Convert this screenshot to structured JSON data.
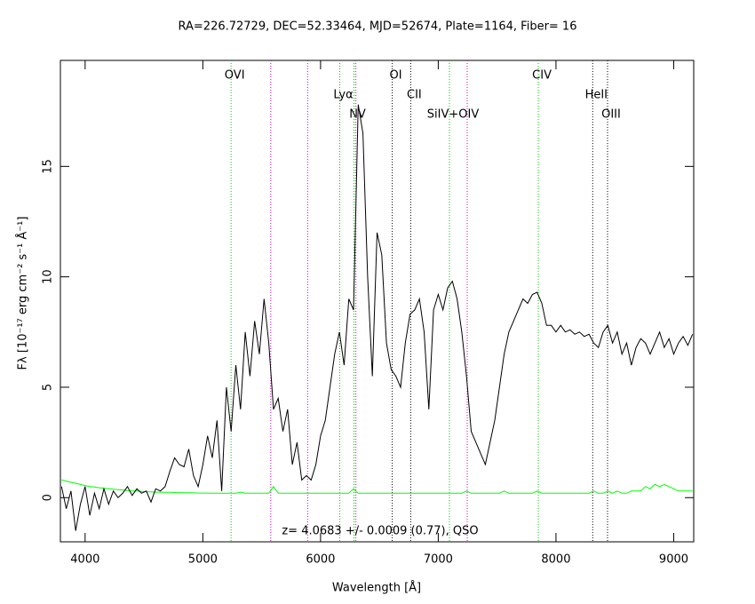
{
  "chart_data": {
    "type": "line",
    "title": "RA=226.72729, DEC=52.33464, MJD=52674, Plate=1164, Fiber= 16",
    "x_label": "Wavelength [Å]",
    "y_label": "Fλ [10⁻¹⁷ erg cm⁻² s⁻¹ Å⁻¹]",
    "annotation": "z= 4.0683 +/- 0.0009 (0.77), QSO",
    "xlim": [
      3790,
      9170
    ],
    "xticks": [
      4000,
      5000,
      6000,
      7000,
      8000,
      9000
    ],
    "ylim": [
      -2,
      19.8
    ],
    "yticks": [
      0,
      5,
      10,
      15
    ],
    "x": [
      3800,
      3840,
      3880,
      3920,
      3960,
      4000,
      4040,
      4080,
      4120,
      4160,
      4200,
      4240,
      4280,
      4320,
      4360,
      4400,
      4440,
      4480,
      4520,
      4560,
      4600,
      4640,
      4680,
      4720,
      4760,
      4800,
      4840,
      4880,
      4920,
      4960,
      5000,
      5040,
      5080,
      5120,
      5160,
      5200,
      5240,
      5280,
      5320,
      5360,
      5400,
      5440,
      5480,
      5520,
      5560,
      5600,
      5640,
      5680,
      5720,
      5760,
      5800,
      5840,
      5880,
      5920,
      5960,
      6000,
      6040,
      6080,
      6120,
      6160,
      6200,
      6240,
      6280,
      6320,
      6360,
      6400,
      6440,
      6480,
      6520,
      6560,
      6600,
      6640,
      6680,
      6720,
      6760,
      6800,
      6840,
      6880,
      6920,
      6960,
      7000,
      7040,
      7080,
      7120,
      7160,
      7200,
      7240,
      7280,
      7320,
      7360,
      7400,
      7440,
      7480,
      7520,
      7560,
      7600,
      7640,
      7680,
      7720,
      7760,
      7800,
      7840,
      7880,
      7920,
      7960,
      8000,
      8040,
      8080,
      8120,
      8160,
      8200,
      8240,
      8280,
      8320,
      8360,
      8400,
      8440,
      8480,
      8520,
      8560,
      8600,
      8640,
      8680,
      8720,
      8760,
      8800,
      8840,
      8880,
      8920,
      8960,
      9000,
      9040,
      9080,
      9120,
      9160
    ],
    "series": [
      {
        "color": "#000000",
        "values": [
          0.5,
          -0.5,
          0.3,
          -1.5,
          -0.3,
          0.5,
          -0.8,
          0.2,
          -0.5,
          0.4,
          -0.3,
          0.3,
          0.0,
          0.2,
          0.5,
          0.1,
          0.4,
          0.2,
          0.3,
          -0.2,
          0.4,
          0.3,
          0.5,
          1.2,
          1.8,
          1.5,
          1.4,
          2.2,
          1.0,
          0.5,
          1.5,
          2.8,
          1.8,
          3.5,
          0.3,
          5.0,
          3.0,
          6.0,
          4.0,
          7.5,
          5.5,
          8.0,
          6.5,
          9.0,
          7.0,
          4.0,
          4.5,
          3.0,
          4.0,
          1.5,
          2.5,
          0.8,
          1.0,
          0.8,
          1.5,
          2.8,
          3.5,
          5.0,
          6.5,
          7.5,
          6.0,
          9.0,
          8.5,
          17.8,
          16.5,
          10.0,
          5.5,
          12.0,
          11.0,
          7.0,
          5.8,
          5.5,
          5.0,
          7.0,
          8.3,
          8.5,
          9.0,
          7.5,
          4.0,
          8.5,
          9.2,
          8.5,
          9.5,
          9.8,
          9.0,
          7.5,
          5.5,
          3.0,
          2.5,
          2.0,
          1.5,
          2.5,
          3.5,
          5.0,
          6.5,
          7.5,
          8.0,
          8.5,
          9.0,
          8.8,
          9.2,
          9.3,
          8.8,
          7.8,
          7.8,
          7.5,
          7.8,
          7.5,
          7.6,
          7.4,
          7.5,
          7.3,
          7.4,
          7.0,
          6.8,
          7.5,
          7.8,
          7.0,
          7.5,
          6.5,
          7.0,
          6.0,
          6.8,
          7.2,
          7.0,
          6.5,
          7.0,
          7.5,
          6.8,
          7.2,
          6.5,
          7.0,
          7.3,
          6.9,
          7.4
        ]
      },
      {
        "color": "#00ff00",
        "values": [
          0.8,
          0.75,
          0.7,
          0.65,
          0.6,
          0.55,
          0.5,
          0.48,
          0.45,
          0.42,
          0.4,
          0.38,
          0.36,
          0.34,
          0.32,
          0.3,
          0.3,
          0.28,
          0.27,
          0.26,
          0.25,
          0.25,
          0.24,
          0.24,
          0.23,
          0.23,
          0.22,
          0.22,
          0.22,
          0.21,
          0.21,
          0.21,
          0.2,
          0.2,
          0.2,
          0.2,
          0.2,
          0.2,
          0.25,
          0.2,
          0.2,
          0.2,
          0.2,
          0.2,
          0.2,
          0.5,
          0.2,
          0.2,
          0.2,
          0.2,
          0.2,
          0.2,
          0.2,
          0.2,
          0.2,
          0.2,
          0.2,
          0.2,
          0.2,
          0.2,
          0.2,
          0.2,
          0.4,
          0.2,
          0.2,
          0.2,
          0.2,
          0.2,
          0.2,
          0.2,
          0.2,
          0.2,
          0.2,
          0.2,
          0.2,
          0.2,
          0.2,
          0.2,
          0.2,
          0.2,
          0.2,
          0.2,
          0.2,
          0.2,
          0.2,
          0.2,
          0.3,
          0.2,
          0.2,
          0.2,
          0.2,
          0.2,
          0.2,
          0.2,
          0.3,
          0.2,
          0.2,
          0.2,
          0.2,
          0.2,
          0.2,
          0.3,
          0.2,
          0.2,
          0.2,
          0.2,
          0.2,
          0.2,
          0.2,
          0.2,
          0.2,
          0.2,
          0.2,
          0.3,
          0.2,
          0.2,
          0.3,
          0.2,
          0.3,
          0.2,
          0.2,
          0.3,
          0.3,
          0.3,
          0.5,
          0.4,
          0.6,
          0.5,
          0.6,
          0.5,
          0.4,
          0.3,
          0.3,
          0.3,
          0.3
        ]
      }
    ],
    "lines": [
      {
        "wavelength": 5240,
        "label": "OVI",
        "color": "#00cc00"
      },
      {
        "wavelength": 5577,
        "color": "#cc00cc"
      },
      {
        "wavelength": 5890,
        "color": "#cc00cc"
      },
      {
        "wavelength": 6163,
        "label": "Lyα",
        "color": "#00cc00"
      },
      {
        "wavelength": 6284,
        "label": "NV",
        "color": "#00cc00"
      },
      {
        "wavelength": 6300,
        "color": "#cc00cc"
      },
      {
        "wavelength": 6609,
        "label": "OI",
        "color": "#000000"
      },
      {
        "wavelength": 6766,
        "label": "CII",
        "color": "#000000"
      },
      {
        "wavelength": 7095,
        "label": "SiIV+OIV",
        "color": "#00cc00"
      },
      {
        "wavelength": 7246,
        "color": "#cc00cc"
      },
      {
        "wavelength": 7850,
        "label": "CIV",
        "color": "#00cc00"
      },
      {
        "wavelength": 8312,
        "label": "HeII",
        "color": "#000000"
      },
      {
        "wavelength": 8438,
        "label": "OIII",
        "color": "#000000"
      }
    ]
  }
}
